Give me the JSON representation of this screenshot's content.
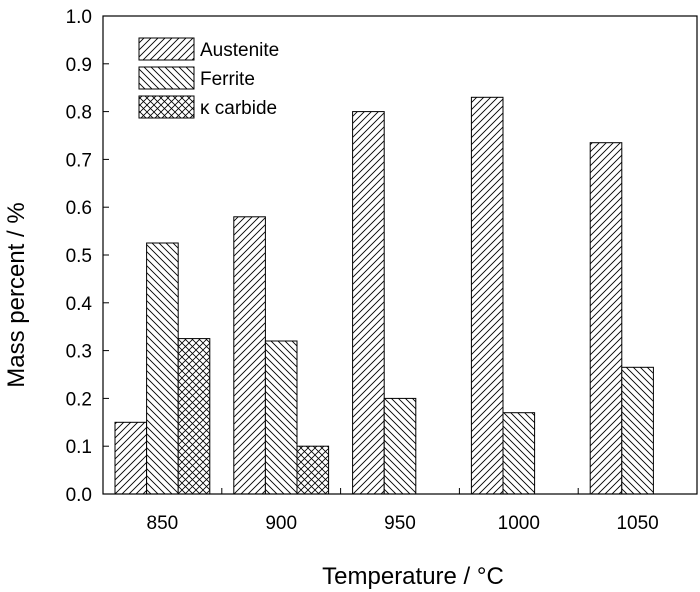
{
  "chart_data": {
    "type": "bar",
    "xlabel": "Temperature / °C",
    "ylabel": "Mass percent / %",
    "categories": [
      "850",
      "900",
      "950",
      "1000",
      "1050"
    ],
    "ylim": [
      0.0,
      1.0
    ],
    "yticks": [
      "0.0",
      "0.1",
      "0.2",
      "0.3",
      "0.4",
      "0.5",
      "0.6",
      "0.7",
      "0.8",
      "0.9",
      "1.0"
    ],
    "legend_position": "top-left",
    "grid": false,
    "series": [
      {
        "name": "Austenite",
        "pattern": "diagonal-up",
        "values": [
          0.15,
          0.58,
          0.8,
          0.83,
          0.735
        ]
      },
      {
        "name": "Ferrite",
        "pattern": "diagonal-down",
        "values": [
          0.525,
          0.32,
          0.2,
          0.17,
          0.265
        ]
      },
      {
        "name": "κ carbide",
        "pattern": "crosshatch",
        "values": [
          0.325,
          0.1,
          null,
          null,
          null
        ]
      }
    ]
  }
}
